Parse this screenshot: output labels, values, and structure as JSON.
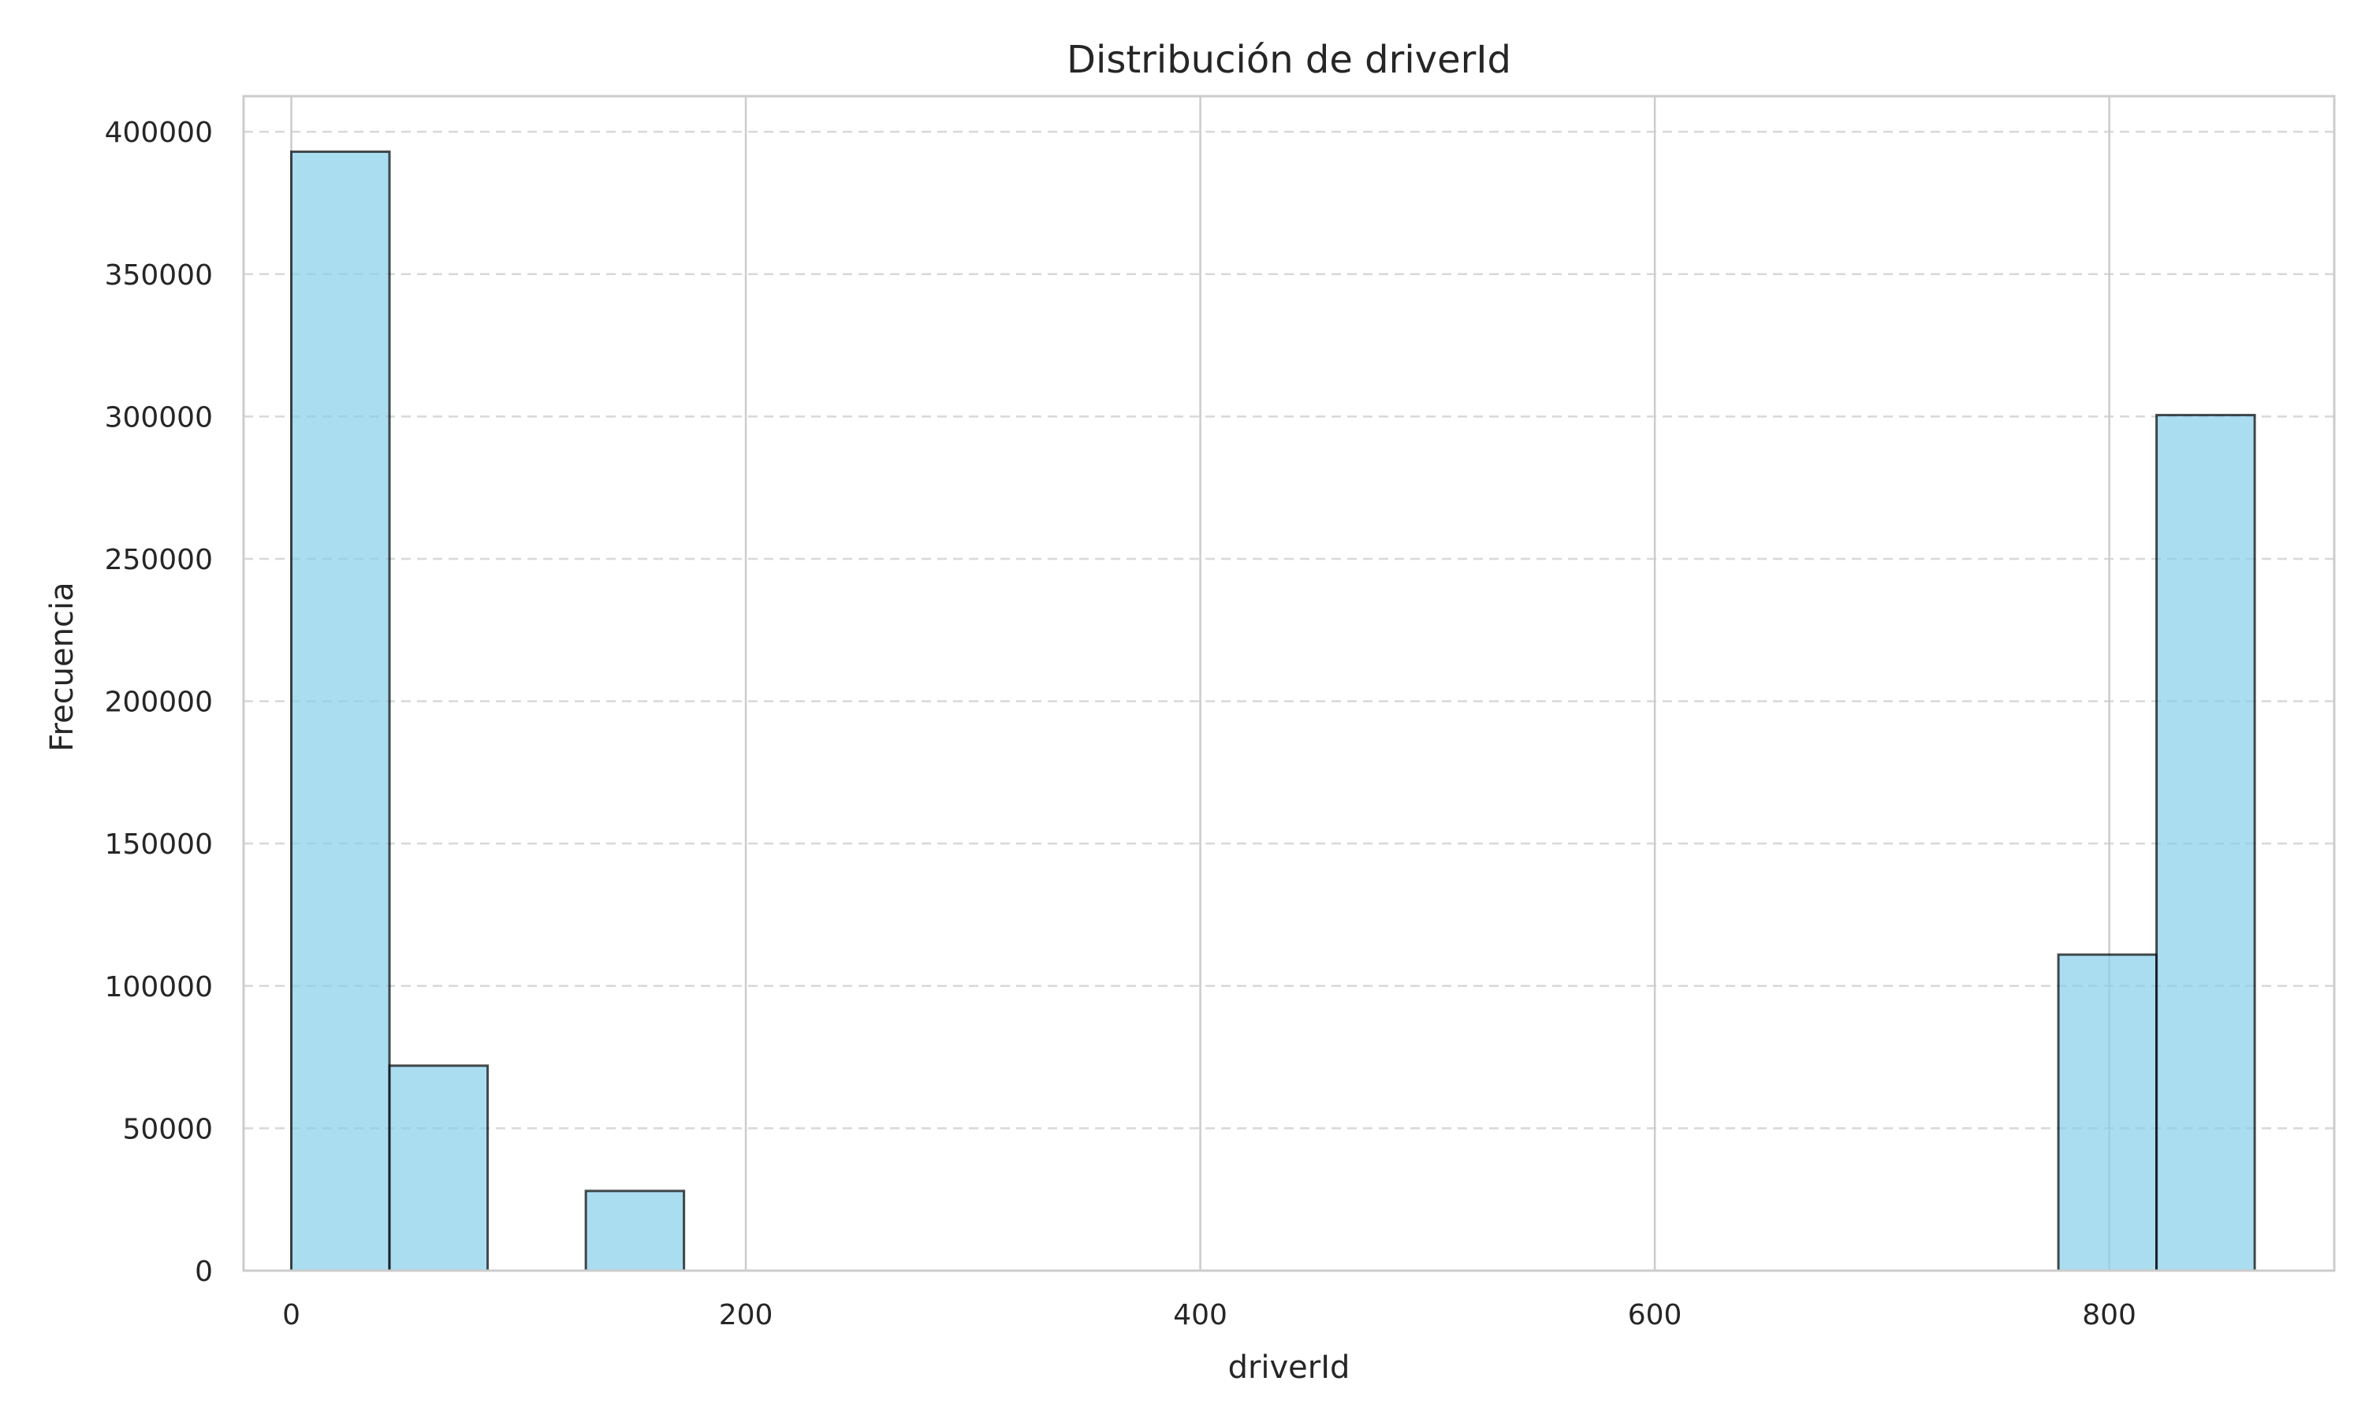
{
  "chart_data": {
    "type": "bar",
    "title": "Distribución de driverId",
    "xlabel": "driverId",
    "ylabel": "Frecuencia",
    "xlim": [
      -21,
      899
    ],
    "ylim": [
      0,
      412500
    ],
    "x_ticks": [
      0,
      200,
      400,
      600,
      800
    ],
    "y_ticks": [
      0,
      50000,
      100000,
      150000,
      200000,
      250000,
      300000,
      350000,
      400000
    ],
    "grid": true,
    "legend": "none",
    "bins": [
      {
        "x0": 0,
        "x1": 43.2,
        "value": 393000
      },
      {
        "x0": 43.2,
        "x1": 86.4,
        "value": 72000
      },
      {
        "x0": 86.4,
        "x1": 129.6,
        "value": 0
      },
      {
        "x0": 129.6,
        "x1": 172.8,
        "value": 28000
      },
      {
        "x0": 172.8,
        "x1": 216,
        "value": 0
      },
      {
        "x0": 216,
        "x1": 259.2,
        "value": 0
      },
      {
        "x0": 259.2,
        "x1": 302.4,
        "value": 0
      },
      {
        "x0": 302.4,
        "x1": 345.6,
        "value": 0
      },
      {
        "x0": 345.6,
        "x1": 388.8,
        "value": 0
      },
      {
        "x0": 388.8,
        "x1": 432,
        "value": 0
      },
      {
        "x0": 432,
        "x1": 475.2,
        "value": 0
      },
      {
        "x0": 475.2,
        "x1": 518.4,
        "value": 0
      },
      {
        "x0": 518.4,
        "x1": 561.6,
        "value": 0
      },
      {
        "x0": 561.6,
        "x1": 604.8,
        "value": 0
      },
      {
        "x0": 604.8,
        "x1": 648,
        "value": 0
      },
      {
        "x0": 648,
        "x1": 691.2,
        "value": 0
      },
      {
        "x0": 691.2,
        "x1": 734.4,
        "value": 0
      },
      {
        "x0": 734.4,
        "x1": 777.6,
        "value": 0
      },
      {
        "x0": 777.6,
        "x1": 820.8,
        "value": 111000
      },
      {
        "x0": 820.8,
        "x1": 864,
        "value": 300500
      }
    ],
    "colors": {
      "bar_fill": "#87ceeb",
      "bar_stroke": "#000000",
      "grid": "#cccccc",
      "axes_edge": "#cccccc"
    }
  }
}
